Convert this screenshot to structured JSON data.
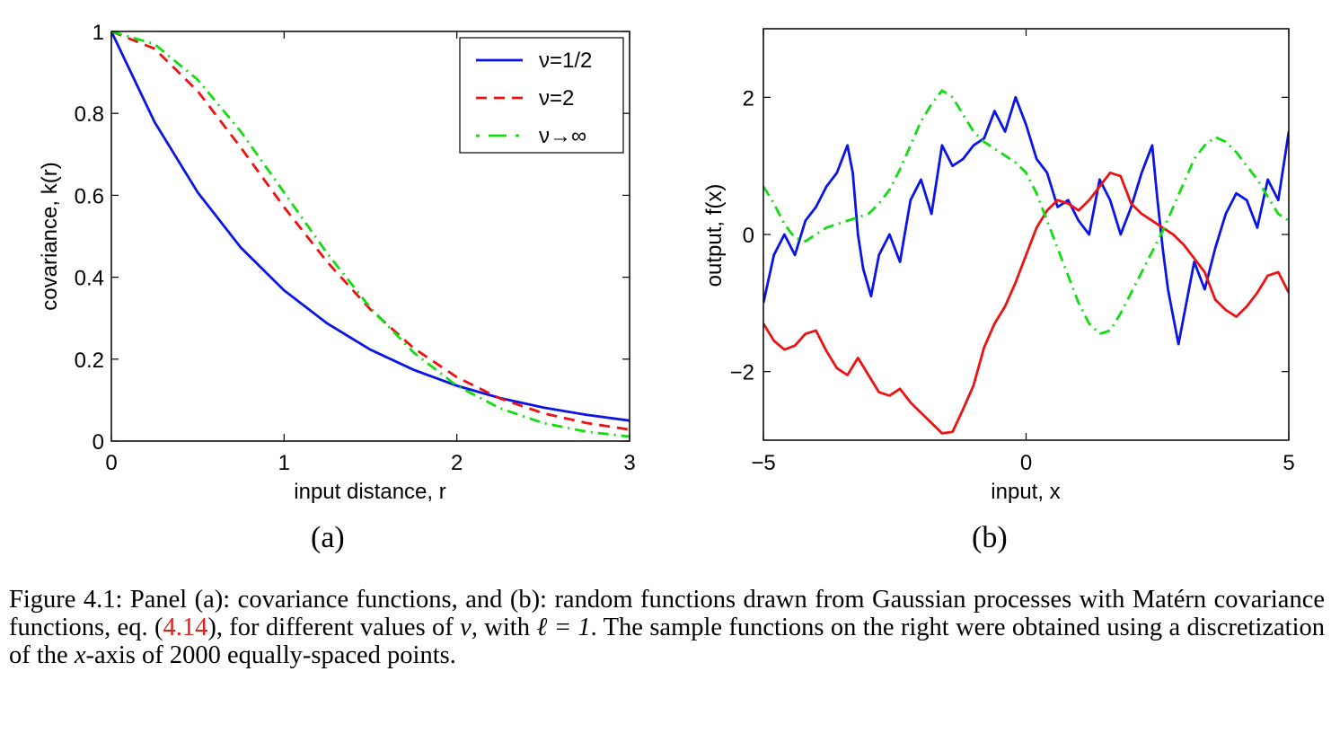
{
  "colors": {
    "blue": "#0a14e6",
    "red": "#ee1111",
    "green": "#11dd11",
    "caption_ref": "#e0201a"
  },
  "panel_a_label": "(a)",
  "panel_b_label": "(b)",
  "caption": {
    "prefix": "Figure 4.1: Panel (a): covariance functions, and (b): random functions drawn from Gaussian processes with Matérn covariance functions, eq. (",
    "ref": "4.14",
    "mid": "), for different values of ",
    "nu": "ν",
    "mid2": ", with ",
    "ell": "ℓ = 1",
    "mid3": ". The sample functions on the right were obtained using a discretization of the ",
    "x": "x",
    "suffix": "-axis of 2000 equally-spaced points."
  },
  "chart_data": [
    {
      "type": "line",
      "panel": "(a)",
      "xlabel": "input distance, r",
      "ylabel": "covariance, k(r)",
      "xlim": [
        0,
        3
      ],
      "ylim": [
        0,
        1
      ],
      "xticks": [
        "0",
        "1",
        "2",
        "3"
      ],
      "yticks": [
        "0",
        "0.2",
        "0.4",
        "0.6",
        "0.8",
        "1"
      ],
      "legend_position": "top-right",
      "grid": false,
      "x": [
        0,
        0.25,
        0.5,
        0.75,
        1.0,
        1.25,
        1.5,
        1.75,
        2.0,
        2.25,
        2.5,
        2.75,
        3.0
      ],
      "series": [
        {
          "name": "ν=1/2",
          "color": "blue",
          "style": "solid",
          "values": [
            1.0,
            0.779,
            0.607,
            0.472,
            0.368,
            0.287,
            0.223,
            0.174,
            0.135,
            0.105,
            0.082,
            0.064,
            0.05
          ]
        },
        {
          "name": "ν=2",
          "color": "red",
          "style": "dashed",
          "values": [
            1.0,
            0.958,
            0.854,
            0.716,
            0.571,
            0.437,
            0.321,
            0.227,
            0.156,
            0.104,
            0.068,
            0.044,
            0.028
          ]
        },
        {
          "name": "ν→∞",
          "color": "green",
          "style": "dashdot",
          "values": [
            1.0,
            0.969,
            0.882,
            0.755,
            0.607,
            0.458,
            0.325,
            0.216,
            0.135,
            0.08,
            0.044,
            0.023,
            0.011
          ]
        }
      ]
    },
    {
      "type": "line",
      "panel": "(b)",
      "xlabel": "input, x",
      "ylabel": "output, f(x)",
      "xlim": [
        -5,
        5
      ],
      "ylim": [
        -3,
        3
      ],
      "xticks": [
        "−5",
        "0",
        "5"
      ],
      "yticks": [
        "−2",
        "0",
        "2"
      ],
      "grid": false,
      "series": [
        {
          "color": "blue",
          "style": "solid",
          "x": [
            -5.0,
            -4.8,
            -4.6,
            -4.4,
            -4.2,
            -4.0,
            -3.8,
            -3.6,
            -3.4,
            -3.3,
            -3.2,
            -3.1,
            -2.95,
            -2.8,
            -2.6,
            -2.4,
            -2.2,
            -2.0,
            -1.8,
            -1.6,
            -1.4,
            -1.2,
            -1.0,
            -0.8,
            -0.6,
            -0.4,
            -0.2,
            0.0,
            0.2,
            0.4,
            0.6,
            0.8,
            1.0,
            1.2,
            1.4,
            1.6,
            1.8,
            2.0,
            2.2,
            2.4,
            2.5,
            2.6,
            2.7,
            2.8,
            2.9,
            3.0,
            3.2,
            3.4,
            3.6,
            3.8,
            4.0,
            4.2,
            4.4,
            4.6,
            4.8,
            5.0
          ],
          "values": [
            -1.0,
            -0.3,
            0.0,
            -0.3,
            0.2,
            0.4,
            0.7,
            0.9,
            1.3,
            0.9,
            0.0,
            -0.5,
            -0.9,
            -0.3,
            0.0,
            -0.4,
            0.5,
            0.8,
            0.3,
            1.3,
            1.0,
            1.1,
            1.3,
            1.4,
            1.8,
            1.5,
            2.0,
            1.6,
            1.1,
            0.9,
            0.4,
            0.5,
            0.2,
            0.0,
            0.8,
            0.5,
            0.0,
            0.4,
            0.9,
            1.3,
            0.5,
            -0.2,
            -0.8,
            -1.2,
            -1.6,
            -1.2,
            -0.4,
            -0.8,
            -0.2,
            0.3,
            0.6,
            0.5,
            0.1,
            0.8,
            0.5,
            1.5
          ]
        },
        {
          "color": "red",
          "style": "solid",
          "x": [
            -5.0,
            -4.8,
            -4.6,
            -4.4,
            -4.2,
            -4.0,
            -3.8,
            -3.6,
            -3.4,
            -3.2,
            -3.0,
            -2.8,
            -2.6,
            -2.4,
            -2.2,
            -2.0,
            -1.8,
            -1.6,
            -1.4,
            -1.2,
            -1.0,
            -0.8,
            -0.6,
            -0.4,
            -0.2,
            0.0,
            0.2,
            0.4,
            0.6,
            0.8,
            1.0,
            1.2,
            1.4,
            1.6,
            1.8,
            2.0,
            2.2,
            2.4,
            2.6,
            2.8,
            3.0,
            3.2,
            3.4,
            3.6,
            3.8,
            4.0,
            4.2,
            4.4,
            4.6,
            4.8,
            5.0
          ],
          "values": [
            -1.3,
            -1.55,
            -1.68,
            -1.62,
            -1.45,
            -1.4,
            -1.7,
            -1.95,
            -2.05,
            -1.8,
            -2.05,
            -2.3,
            -2.35,
            -2.25,
            -2.45,
            -2.6,
            -2.75,
            -2.9,
            -2.88,
            -2.55,
            -2.2,
            -1.65,
            -1.3,
            -1.05,
            -0.7,
            -0.3,
            0.1,
            0.35,
            0.5,
            0.45,
            0.35,
            0.5,
            0.7,
            0.9,
            0.85,
            0.45,
            0.3,
            0.2,
            0.1,
            0.0,
            -0.15,
            -0.35,
            -0.55,
            -0.95,
            -1.1,
            -1.2,
            -1.05,
            -0.85,
            -0.6,
            -0.55,
            -0.85
          ]
        },
        {
          "color": "green",
          "style": "dashdot",
          "x": [
            -5.0,
            -4.8,
            -4.6,
            -4.4,
            -4.2,
            -4.0,
            -3.8,
            -3.6,
            -3.4,
            -3.2,
            -3.0,
            -2.8,
            -2.6,
            -2.4,
            -2.2,
            -2.0,
            -1.8,
            -1.6,
            -1.4,
            -1.2,
            -1.0,
            -0.8,
            -0.6,
            -0.4,
            -0.2,
            0.0,
            0.2,
            0.4,
            0.6,
            0.8,
            1.0,
            1.2,
            1.4,
            1.6,
            1.8,
            2.0,
            2.2,
            2.4,
            2.6,
            2.8,
            3.0,
            3.2,
            3.4,
            3.6,
            3.8,
            4.0,
            4.2,
            4.4,
            4.6,
            4.8,
            5.0
          ],
          "values": [
            0.7,
            0.45,
            0.15,
            -0.05,
            -0.1,
            0.0,
            0.1,
            0.15,
            0.2,
            0.25,
            0.3,
            0.45,
            0.65,
            0.95,
            1.3,
            1.65,
            1.9,
            2.1,
            2.0,
            1.75,
            1.5,
            1.35,
            1.25,
            1.15,
            1.05,
            0.9,
            0.6,
            0.2,
            -0.2,
            -0.6,
            -1.0,
            -1.3,
            -1.45,
            -1.4,
            -1.15,
            -0.85,
            -0.55,
            -0.25,
            0.05,
            0.4,
            0.75,
            1.1,
            1.3,
            1.42,
            1.35,
            1.2,
            1.0,
            0.8,
            0.55,
            0.3,
            0.2
          ]
        }
      ]
    }
  ]
}
